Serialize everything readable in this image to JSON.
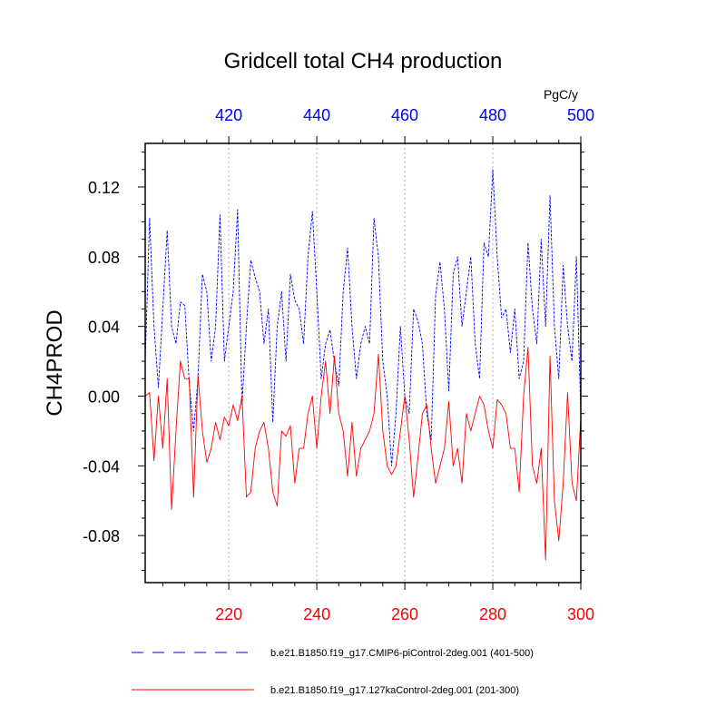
{
  "chart_data": {
    "type": "line",
    "title": "Gridcell total CH4 production",
    "ylabel": "CH4PROD",
    "units_label": "PgC/y",
    "ylim": [
      -0.107,
      0.145
    ],
    "yticks": [
      "0.12",
      "0.08",
      "0.04",
      "0.00",
      "-0.04",
      "-0.08"
    ],
    "bottom_axis": {
      "xlim": [
        201,
        300
      ],
      "ticks": [
        "220",
        "240",
        "260",
        "280",
        "300"
      ],
      "color": "#ff0000"
    },
    "top_axis": {
      "xlim": [
        401,
        500
      ],
      "ticks": [
        "420",
        "440",
        "460",
        "480",
        "500"
      ],
      "color": "#0000ff"
    },
    "series": [
      {
        "name": "b.e21.B1850.f19_g17.CMIP6-piControl-2deg.001 (401-500)",
        "axis": "top",
        "color": "#0000ff",
        "dash": "dashed",
        "x_start": 401,
        "values": [
          0.02,
          0.102,
          0.04,
          0.005,
          0.05,
          0.095,
          0.04,
          0.03,
          0.054,
          0.052,
          0.008,
          -0.02,
          0.01,
          0.07,
          0.06,
          0.02,
          0.04,
          0.104,
          0.02,
          0.04,
          0.06,
          0.107,
          -0.005,
          0.04,
          0.078,
          0.068,
          0.06,
          0.03,
          0.05,
          -0.015,
          0.04,
          0.06,
          0.02,
          0.07,
          0.055,
          0.05,
          0.03,
          0.08,
          0.106,
          0.06,
          0.01,
          0.03,
          0.038,
          0.02,
          0.006,
          0.06,
          0.085,
          0.04,
          0.01,
          0.03,
          0.04,
          0.03,
          0.102,
          0.08,
          0.02,
          0.0,
          -0.04,
          -0.01,
          0.04,
          0.0,
          -0.01,
          0.05,
          0.043,
          0.03,
          -0.01,
          -0.025,
          0.058,
          0.077,
          0.05,
          0.003,
          0.07,
          0.08,
          0.04,
          0.06,
          0.08,
          0.03,
          0.01,
          0.088,
          0.08,
          0.13,
          0.08,
          0.045,
          0.05,
          0.025,
          0.05,
          0.01,
          0.02,
          0.088,
          0.05,
          0.03,
          0.09,
          0.04,
          0.115,
          0.04,
          0.01,
          0.075,
          0.04,
          0.02,
          0.08,
          -0.01
        ]
      },
      {
        "name": "b.e21.B1850.f19_g17.127kaControl-2deg.001 (201-300)",
        "axis": "bottom",
        "color": "#ff0000",
        "dash": "solid",
        "x_start": 201,
        "values": [
          0.0,
          0.002,
          -0.037,
          0.0,
          -0.03,
          0.01,
          -0.065,
          -0.02,
          0.02,
          0.01,
          0.01,
          -0.058,
          0.012,
          -0.02,
          -0.038,
          -0.03,
          -0.015,
          -0.025,
          -0.012,
          -0.017,
          -0.005,
          -0.014,
          0.0,
          -0.058,
          -0.055,
          -0.03,
          -0.02,
          -0.015,
          -0.03,
          -0.055,
          -0.063,
          -0.02,
          -0.023,
          -0.017,
          -0.05,
          -0.03,
          -0.03,
          -0.01,
          0.0,
          -0.03,
          0.0,
          0.02,
          -0.01,
          0.023,
          -0.01,
          -0.02,
          -0.046,
          -0.015,
          -0.046,
          -0.03,
          -0.025,
          -0.02,
          -0.01,
          0.024,
          -0.02,
          -0.04,
          -0.045,
          -0.04,
          -0.02,
          0.0,
          -0.025,
          -0.058,
          -0.035,
          -0.01,
          -0.005,
          -0.03,
          -0.05,
          -0.04,
          -0.03,
          -0.003,
          -0.04,
          -0.03,
          -0.05,
          -0.01,
          -0.02,
          -0.01,
          0.0,
          -0.005,
          -0.02,
          -0.03,
          -0.002,
          -0.005,
          -0.01,
          -0.03,
          -0.03,
          -0.055,
          0.0,
          0.028,
          -0.04,
          -0.05,
          -0.03,
          -0.094,
          0.023,
          -0.06,
          -0.083,
          -0.05,
          0.002,
          -0.05,
          -0.06,
          -0.012
        ]
      }
    ],
    "legend_position": "bottom"
  }
}
